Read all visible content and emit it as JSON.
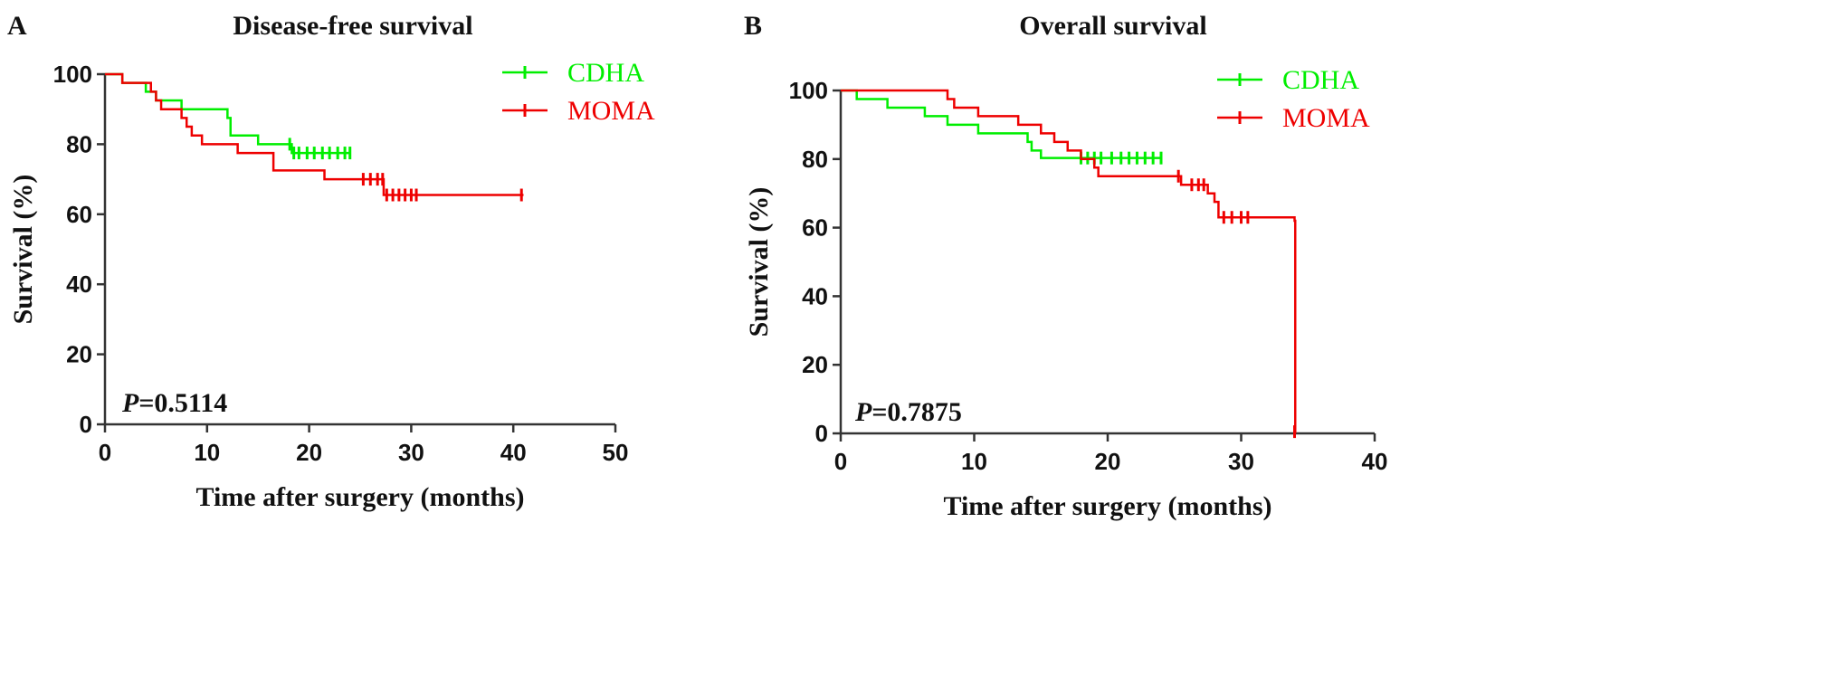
{
  "chart_data": [
    {
      "type": "line",
      "panel_label": "A",
      "title": "Disease-free survival",
      "xlabel": "Time after surgery (months)",
      "ylabel": "Survival (%)",
      "xlim": [
        0,
        50
      ],
      "ylim": [
        0,
        100
      ],
      "xticks": [
        0,
        10,
        20,
        30,
        40,
        50
      ],
      "yticks": [
        0,
        20,
        40,
        60,
        80,
        100
      ],
      "annotation": {
        "italic": "P",
        "text": "=0.5114"
      },
      "legend_position": "top-right",
      "series": [
        {
          "name": "CDHA",
          "color": "#00ee00",
          "steps": [
            [
              0,
              100
            ],
            [
              1.7,
              97.5
            ],
            [
              4,
              95
            ],
            [
              5,
              92.5
            ],
            [
              7.5,
              90
            ],
            [
              12,
              87.5
            ],
            [
              12.3,
              82.5
            ],
            [
              15,
              80
            ],
            [
              18.3,
              77.5
            ]
          ],
          "end": 24,
          "censored": [
            [
              18.1,
              80
            ],
            [
              18.5,
              77.5
            ],
            [
              19,
              77.5
            ],
            [
              19.8,
              77.5
            ],
            [
              20.5,
              77.5
            ],
            [
              21.3,
              77.5
            ],
            [
              22,
              77.5
            ],
            [
              22.8,
              77.5
            ],
            [
              23.5,
              77.5
            ],
            [
              24,
              77.5
            ]
          ]
        },
        {
          "name": "MOMA",
          "color": "#ee0000",
          "steps": [
            [
              0,
              100
            ],
            [
              1.7,
              97.5
            ],
            [
              4.5,
              95
            ],
            [
              5,
              92.5
            ],
            [
              5.5,
              90
            ],
            [
              7.5,
              87.5
            ],
            [
              8,
              85
            ],
            [
              8.5,
              82.5
            ],
            [
              9.5,
              80
            ],
            [
              13,
              77.5
            ],
            [
              16.5,
              72.5
            ],
            [
              21.5,
              70
            ],
            [
              27.3,
              65.5
            ]
          ],
          "end": 41,
          "censored": [
            [
              25.3,
              70
            ],
            [
              26,
              70
            ],
            [
              26.7,
              70
            ],
            [
              27.2,
              70
            ],
            [
              27.6,
              65.5
            ],
            [
              28.2,
              65.5
            ],
            [
              28.8,
              65.5
            ],
            [
              29.4,
              65.5
            ],
            [
              30,
              65.5
            ],
            [
              30.5,
              65.5
            ],
            [
              40.8,
              65.5
            ]
          ]
        }
      ]
    },
    {
      "type": "line",
      "panel_label": "B",
      "title": "Overall survival",
      "xlabel": "Time after surgery (months)",
      "ylabel": "Survival (%)",
      "xlim": [
        0,
        40
      ],
      "ylim": [
        0,
        100
      ],
      "xticks": [
        0,
        10,
        20,
        30,
        40
      ],
      "yticks": [
        0,
        20,
        40,
        60,
        80,
        100
      ],
      "annotation": {
        "italic": "P",
        "text": "=0.7875"
      },
      "legend_position": "top-right",
      "series": [
        {
          "name": "CDHA",
          "color": "#00ee00",
          "steps": [
            [
              0,
              100
            ],
            [
              1.2,
              97.5
            ],
            [
              3.5,
              95
            ],
            [
              6.3,
              92.5
            ],
            [
              8,
              90
            ],
            [
              10.3,
              87.5
            ],
            [
              14,
              85
            ],
            [
              14.3,
              82.5
            ],
            [
              15,
              80.3
            ]
          ],
          "end": 24,
          "censored": [
            [
              18,
              80.3
            ],
            [
              18.5,
              80.3
            ],
            [
              19,
              80.3
            ],
            [
              19.5,
              80.3
            ],
            [
              20.3,
              80.3
            ],
            [
              21,
              80.3
            ],
            [
              21.6,
              80.3
            ],
            [
              22.2,
              80.3
            ],
            [
              22.8,
              80.3
            ],
            [
              23.4,
              80.3
            ],
            [
              24,
              80.3
            ]
          ]
        },
        {
          "name": "MOMA",
          "color": "#ee0000",
          "steps": [
            [
              0,
              100
            ],
            [
              8,
              97.5
            ],
            [
              8.5,
              95
            ],
            [
              10.3,
              92.5
            ],
            [
              13.3,
              90
            ],
            [
              15,
              87.5
            ],
            [
              16,
              85
            ],
            [
              17,
              82.5
            ],
            [
              18,
              80
            ],
            [
              19,
              77.5
            ],
            [
              19.3,
              75
            ],
            [
              25.5,
              72.5
            ],
            [
              27.5,
              70
            ],
            [
              28,
              67.5
            ],
            [
              28.3,
              63
            ],
            [
              34,
              62
            ],
            [
              34.05,
              0
            ]
          ],
          "end": 34.05,
          "censored": [
            [
              25.3,
              75
            ],
            [
              26.3,
              72.5
            ],
            [
              26.8,
              72.5
            ],
            [
              27.2,
              72.5
            ],
            [
              28.7,
              63
            ],
            [
              29.3,
              63
            ],
            [
              30,
              63
            ],
            [
              30.5,
              63
            ],
            [
              34,
              0.5
            ]
          ]
        }
      ]
    }
  ]
}
